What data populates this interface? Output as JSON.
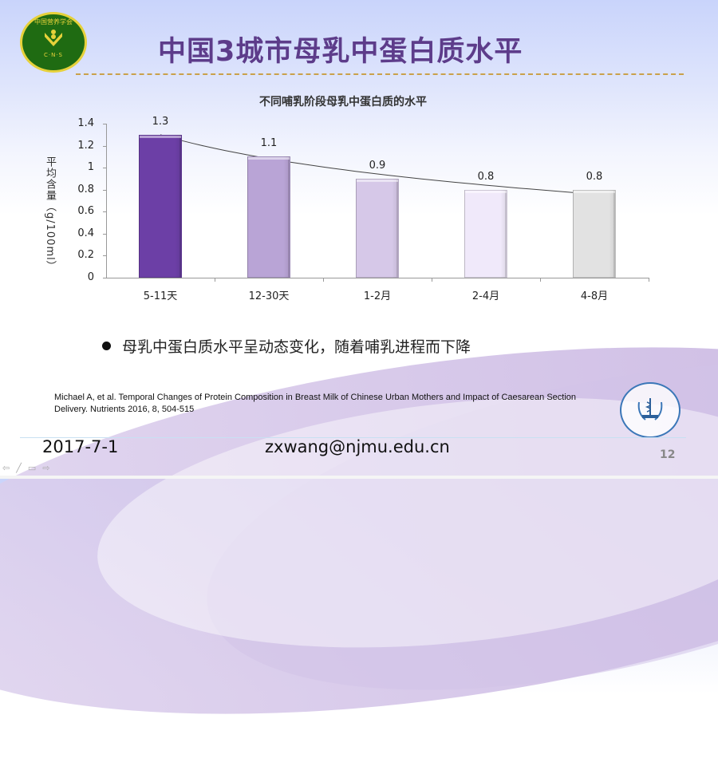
{
  "slide": {
    "title": "中国3城市母乳中蛋白质水平",
    "logo_left": {
      "org_text": "中国营养学会",
      "abbr": "C·N·S"
    },
    "bullet": "母乳中蛋白质水平呈动态变化，随着哺乳进程而下降",
    "reference": "Michael A, et al. Temporal Changes of Protein Composition in Breast Milk of Chinese Urban Mothers and Impact of Caesarean Section Delivery. Nutrients 2016, 8, 504-515",
    "footer": {
      "date": "2017-7-1",
      "email": "zxwang@njmu.edu.cn",
      "page_number": "12"
    },
    "nav_icons": [
      "prev-arrow",
      "pen",
      "menu",
      "next-arrow"
    ]
  },
  "chart_data": {
    "type": "bar",
    "title": "不同哺乳阶段母乳中蛋白质的水平",
    "xlabel": "",
    "ylabel": "平均含量（g/100ml）",
    "categories": [
      "5-11天",
      "12-30天",
      "1-2月",
      "2-4月",
      "4-8月"
    ],
    "values": [
      1.3,
      1.1,
      0.9,
      0.8,
      0.8
    ],
    "value_labels": [
      "1.3",
      "1.1",
      "0.9",
      "0.8",
      "0.8"
    ],
    "ylim": [
      0,
      1.4
    ],
    "yticks": [
      "0",
      "0.2",
      "0.4",
      "0.6",
      "0.8",
      "1",
      "1.2",
      "1.4"
    ],
    "grid": false,
    "legend": "none",
    "trendline": "decreasing curve through bar tops (1.3 → ~0.76)",
    "bar_colors": [
      "#6c3fa6",
      "#b9a4d6",
      "#d6c8e8",
      "#f0e9fa",
      "#e2e2e2"
    ]
  }
}
